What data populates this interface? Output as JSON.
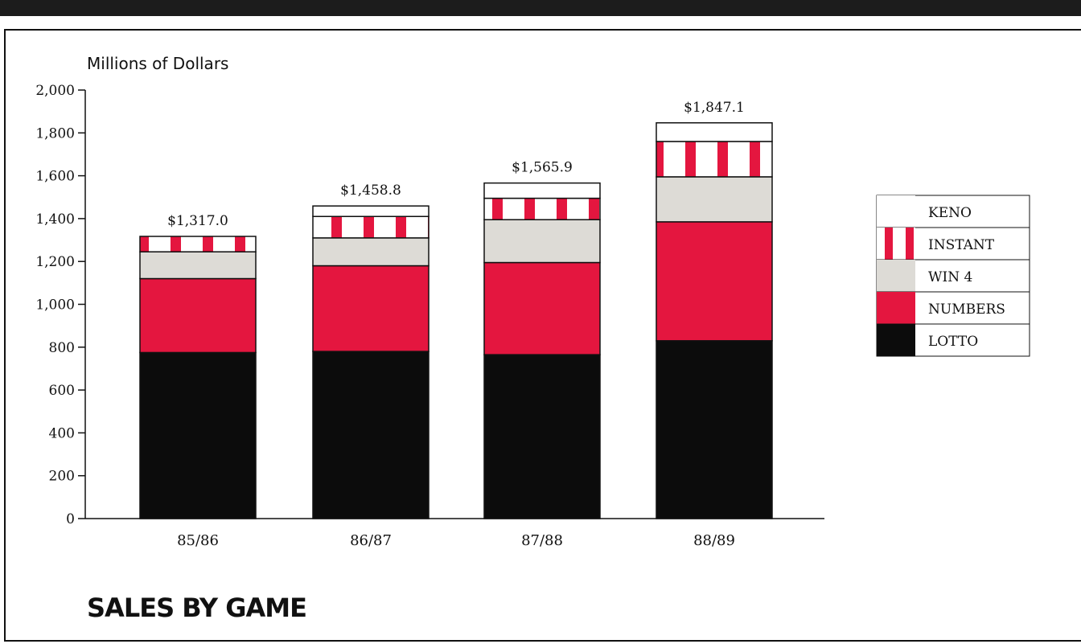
{
  "colors": {
    "lotto": "#0c0c0c",
    "numbers": "#e4163f",
    "win4": "#dddbd6",
    "instant_stripe": "#e4163f",
    "keno": "#ffffff",
    "frame": "#111111",
    "top_band": "#1c1c1c"
  },
  "chart_data": {
    "type": "bar",
    "stacked": true,
    "title": "SALES BY GAME",
    "ylabel": "Millions of Dollars",
    "ylim": [
      0,
      2000
    ],
    "yticks": [
      "0",
      "200",
      "400",
      "600",
      "800",
      "1,000",
      "1,200",
      "1,400",
      "1,600",
      "1,800",
      "2,000"
    ],
    "categories": [
      "85/86",
      "86/87",
      "87/88",
      "88/89"
    ],
    "totals": [
      "$1,317.0",
      "$1,458.8",
      "$1,565.9",
      "$1,847.1"
    ],
    "legend_position": "right",
    "series": [
      {
        "name": "LOTTO",
        "key": "lotto",
        "values": [
          775,
          780,
          765,
          830
        ]
      },
      {
        "name": "NUMBERS",
        "key": "numbers",
        "values": [
          345,
          400,
          430,
          555
        ]
      },
      {
        "name": "WIN 4",
        "key": "win4",
        "values": [
          125,
          130,
          200,
          210
        ]
      },
      {
        "name": "INSTANT",
        "key": "instant",
        "values": [
          72,
          100,
          100,
          165
        ]
      },
      {
        "name": "KENO",
        "key": "keno",
        "values": [
          0,
          49,
          71,
          87
        ]
      }
    ]
  }
}
